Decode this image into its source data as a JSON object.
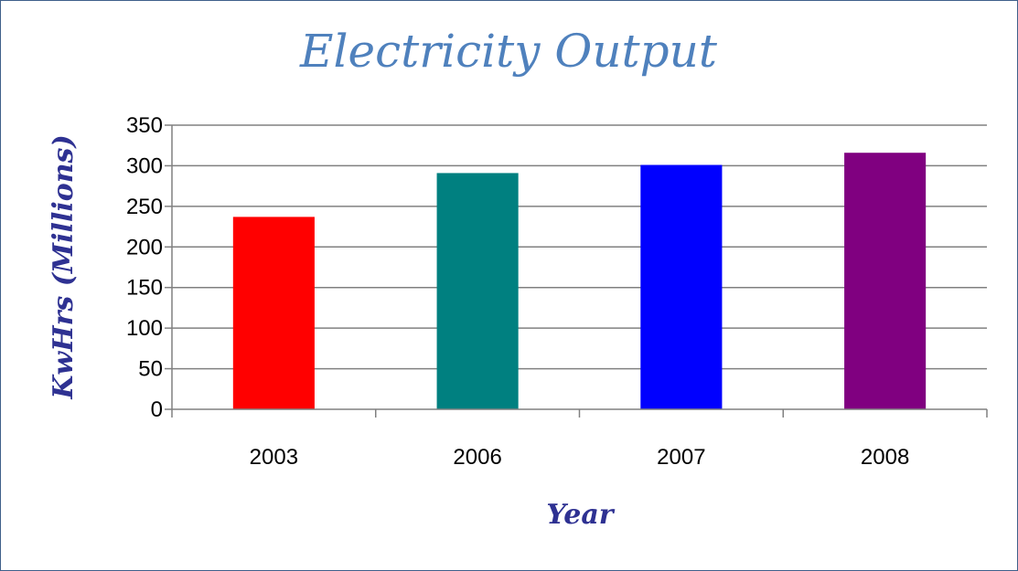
{
  "chart_data": {
    "type": "bar",
    "title": "Electricity Output",
    "xlabel": "Year",
    "ylabel": "KwHrs (Millions)",
    "categories": [
      "2003",
      "2006",
      "2007",
      "2008"
    ],
    "values": [
      237,
      291,
      301,
      316
    ],
    "ylim": [
      0,
      350
    ],
    "yticks": [
      0,
      50,
      100,
      150,
      200,
      250,
      300,
      350
    ],
    "grid": true,
    "legend": "none",
    "colors": [
      "#ff0000",
      "#008080",
      "#0000ff",
      "#800080"
    ]
  }
}
